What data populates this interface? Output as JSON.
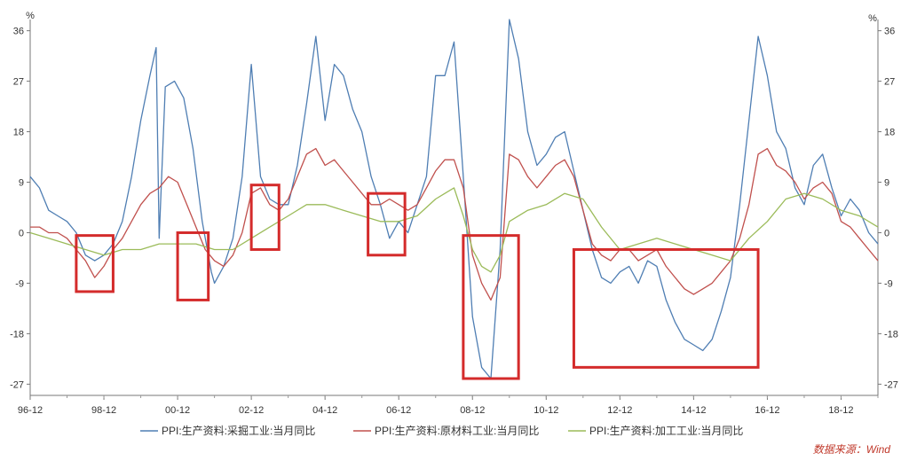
{
  "chart_data": {
    "type": "line",
    "title": "",
    "unit_left": "%",
    "unit_right": "%",
    "x_ticks": [
      "96-12",
      "98-12",
      "00-12",
      "02-12",
      "04-12",
      "06-12",
      "08-12",
      "10-12",
      "12-12",
      "14-12",
      "16-12",
      "18-12"
    ],
    "xlim": [
      "1996-12",
      "2019-12"
    ],
    "y_ticks": [
      36,
      27,
      18,
      9,
      0,
      -9,
      -18,
      -27
    ],
    "ylim": [
      -29,
      38
    ],
    "grid": false,
    "legend_position": "bottom",
    "source": "数据来源：Wind",
    "colors": {
      "mining": "#4f7eb3",
      "raw": "#c0504d",
      "processing": "#9bbb59",
      "highlight_box": "#d42b2b"
    },
    "series": [
      {
        "name": "PPI:生产资料:采掘工业:当月同比",
        "color": "#4f7eb3",
        "points": [
          [
            "1996-12",
            10
          ],
          [
            "1997-03",
            8
          ],
          [
            "1997-06",
            4
          ],
          [
            "1997-09",
            3
          ],
          [
            "1997-12",
            2
          ],
          [
            "1998-03",
            0
          ],
          [
            "1998-06",
            -4
          ],
          [
            "1998-09",
            -5
          ],
          [
            "1998-12",
            -4
          ],
          [
            "1999-03",
            -2
          ],
          [
            "1999-06",
            2
          ],
          [
            "1999-09",
            10
          ],
          [
            "1999-12",
            20
          ],
          [
            "2000-03",
            28
          ],
          [
            "2000-05",
            33
          ],
          [
            "2000-06",
            -1
          ],
          [
            "2000-08",
            26
          ],
          [
            "2000-11",
            27
          ],
          [
            "2001-02",
            24
          ],
          [
            "2001-05",
            15
          ],
          [
            "2001-08",
            2
          ],
          [
            "2001-11",
            -7
          ],
          [
            "2001-12",
            -9
          ],
          [
            "2002-03",
            -6
          ],
          [
            "2002-06",
            -1
          ],
          [
            "2002-09",
            10
          ],
          [
            "2002-12",
            30
          ],
          [
            "2003-03",
            10
          ],
          [
            "2003-06",
            6
          ],
          [
            "2003-09",
            5
          ],
          [
            "2003-12",
            5
          ],
          [
            "2004-03",
            12
          ],
          [
            "2004-06",
            23
          ],
          [
            "2004-09",
            35
          ],
          [
            "2004-12",
            20
          ],
          [
            "2005-03",
            30
          ],
          [
            "2005-06",
            28
          ],
          [
            "2005-09",
            22
          ],
          [
            "2005-12",
            18
          ],
          [
            "2006-03",
            10
          ],
          [
            "2006-06",
            5
          ],
          [
            "2006-09",
            -1
          ],
          [
            "2006-12",
            2
          ],
          [
            "2007-03",
            0
          ],
          [
            "2007-06",
            5
          ],
          [
            "2007-09",
            10
          ],
          [
            "2007-12",
            28
          ],
          [
            "2008-03",
            28
          ],
          [
            "2008-06",
            34
          ],
          [
            "2008-09",
            10
          ],
          [
            "2008-12",
            -15
          ],
          [
            "2009-03",
            -24
          ],
          [
            "2009-06",
            -26
          ],
          [
            "2009-09",
            -3
          ],
          [
            "2009-12",
            38
          ],
          [
            "2010-03",
            31
          ],
          [
            "2010-06",
            18
          ],
          [
            "2010-09",
            12
          ],
          [
            "2010-12",
            14
          ],
          [
            "2011-03",
            17
          ],
          [
            "2011-06",
            18
          ],
          [
            "2011-09",
            11
          ],
          [
            "2011-12",
            4
          ],
          [
            "2012-03",
            -3
          ],
          [
            "2012-06",
            -8
          ],
          [
            "2012-09",
            -9
          ],
          [
            "2012-12",
            -7
          ],
          [
            "2013-03",
            -6
          ],
          [
            "2013-06",
            -9
          ],
          [
            "2013-09",
            -5
          ],
          [
            "2013-12",
            -6
          ],
          [
            "2014-03",
            -12
          ],
          [
            "2014-06",
            -16
          ],
          [
            "2014-09",
            -19
          ],
          [
            "2014-12",
            -20
          ],
          [
            "2015-03",
            -21
          ],
          [
            "2015-06",
            -19
          ],
          [
            "2015-09",
            -14
          ],
          [
            "2015-12",
            -8
          ],
          [
            "2016-03",
            5
          ],
          [
            "2016-06",
            20
          ],
          [
            "2016-09",
            35
          ],
          [
            "2016-12",
            28
          ],
          [
            "2017-03",
            18
          ],
          [
            "2017-06",
            15
          ],
          [
            "2017-09",
            8
          ],
          [
            "2017-12",
            5
          ],
          [
            "2018-03",
            12
          ],
          [
            "2018-06",
            14
          ],
          [
            "2018-09",
            8
          ],
          [
            "2018-12",
            3
          ],
          [
            "2019-03",
            6
          ],
          [
            "2019-06",
            4
          ],
          [
            "2019-09",
            0
          ],
          [
            "2019-12",
            -2
          ]
        ]
      },
      {
        "name": "PPI:生产资料:原材料工业:当月同比",
        "color": "#c0504d",
        "points": [
          [
            "1996-12",
            1
          ],
          [
            "1997-03",
            1
          ],
          [
            "1997-06",
            0
          ],
          [
            "1997-09",
            0
          ],
          [
            "1997-12",
            -1
          ],
          [
            "1998-03",
            -3
          ],
          [
            "1998-06",
            -5
          ],
          [
            "1998-09",
            -8
          ],
          [
            "1998-12",
            -6
          ],
          [
            "1999-03",
            -3
          ],
          [
            "1999-06",
            -1
          ],
          [
            "1999-09",
            2
          ],
          [
            "1999-12",
            5
          ],
          [
            "2000-03",
            7
          ],
          [
            "2000-06",
            8
          ],
          [
            "2000-09",
            10
          ],
          [
            "2000-12",
            9
          ],
          [
            "2001-03",
            5
          ],
          [
            "2001-06",
            1
          ],
          [
            "2001-09",
            -3
          ],
          [
            "2001-12",
            -5
          ],
          [
            "2002-03",
            -6
          ],
          [
            "2002-06",
            -4
          ],
          [
            "2002-09",
            0
          ],
          [
            "2002-12",
            7
          ],
          [
            "2003-03",
            8
          ],
          [
            "2003-06",
            5
          ],
          [
            "2003-09",
            4
          ],
          [
            "2003-12",
            6
          ],
          [
            "2004-03",
            10
          ],
          [
            "2004-06",
            14
          ],
          [
            "2004-09",
            15
          ],
          [
            "2004-12",
            12
          ],
          [
            "2005-03",
            13
          ],
          [
            "2005-06",
            11
          ],
          [
            "2005-09",
            9
          ],
          [
            "2005-12",
            7
          ],
          [
            "2006-03",
            5
          ],
          [
            "2006-06",
            5
          ],
          [
            "2006-09",
            6
          ],
          [
            "2006-12",
            5
          ],
          [
            "2007-03",
            4
          ],
          [
            "2007-06",
            5
          ],
          [
            "2007-09",
            8
          ],
          [
            "2007-12",
            11
          ],
          [
            "2008-03",
            13
          ],
          [
            "2008-06",
            13
          ],
          [
            "2008-09",
            8
          ],
          [
            "2008-12",
            -4
          ],
          [
            "2009-03",
            -9
          ],
          [
            "2009-06",
            -12
          ],
          [
            "2009-09",
            -8
          ],
          [
            "2009-12",
            14
          ],
          [
            "2010-03",
            13
          ],
          [
            "2010-06",
            10
          ],
          [
            "2010-09",
            8
          ],
          [
            "2010-12",
            10
          ],
          [
            "2011-03",
            12
          ],
          [
            "2011-06",
            13
          ],
          [
            "2011-09",
            10
          ],
          [
            "2011-12",
            4
          ],
          [
            "2012-03",
            -2
          ],
          [
            "2012-06",
            -4
          ],
          [
            "2012-09",
            -5
          ],
          [
            "2012-12",
            -3
          ],
          [
            "2013-03",
            -3
          ],
          [
            "2013-06",
            -5
          ],
          [
            "2013-09",
            -4
          ],
          [
            "2013-12",
            -3
          ],
          [
            "2014-03",
            -6
          ],
          [
            "2014-06",
            -8
          ],
          [
            "2014-09",
            -10
          ],
          [
            "2014-12",
            -11
          ],
          [
            "2015-03",
            -10
          ],
          [
            "2015-06",
            -9
          ],
          [
            "2015-09",
            -7
          ],
          [
            "2015-12",
            -5
          ],
          [
            "2016-03",
            -1
          ],
          [
            "2016-06",
            5
          ],
          [
            "2016-09",
            14
          ],
          [
            "2016-12",
            15
          ],
          [
            "2017-03",
            12
          ],
          [
            "2017-06",
            11
          ],
          [
            "2017-09",
            9
          ],
          [
            "2017-12",
            6
          ],
          [
            "2018-03",
            8
          ],
          [
            "2018-06",
            9
          ],
          [
            "2018-09",
            7
          ],
          [
            "2018-12",
            2
          ],
          [
            "2019-03",
            1
          ],
          [
            "2019-06",
            -1
          ],
          [
            "2019-09",
            -3
          ],
          [
            "2019-12",
            -5
          ]
        ]
      },
      {
        "name": "PPI:生产资料:加工工业:当月同比",
        "color": "#9bbb59",
        "points": [
          [
            "1996-12",
            0
          ],
          [
            "1997-06",
            -1
          ],
          [
            "1997-12",
            -2
          ],
          [
            "1998-06",
            -3
          ],
          [
            "1998-12",
            -4
          ],
          [
            "1999-06",
            -3
          ],
          [
            "1999-12",
            -3
          ],
          [
            "2000-06",
            -2
          ],
          [
            "2000-12",
            -2
          ],
          [
            "2001-06",
            -2
          ],
          [
            "2001-12",
            -3
          ],
          [
            "2002-06",
            -3
          ],
          [
            "2002-12",
            -1
          ],
          [
            "2003-06",
            1
          ],
          [
            "2003-12",
            3
          ],
          [
            "2004-06",
            5
          ],
          [
            "2004-12",
            5
          ],
          [
            "2005-06",
            4
          ],
          [
            "2005-12",
            3
          ],
          [
            "2006-06",
            2
          ],
          [
            "2006-12",
            2
          ],
          [
            "2007-06",
            3
          ],
          [
            "2007-12",
            6
          ],
          [
            "2008-03",
            7
          ],
          [
            "2008-06",
            8
          ],
          [
            "2008-09",
            3
          ],
          [
            "2008-12",
            -3
          ],
          [
            "2009-03",
            -6
          ],
          [
            "2009-06",
            -7
          ],
          [
            "2009-09",
            -4
          ],
          [
            "2009-12",
            2
          ],
          [
            "2010-06",
            4
          ],
          [
            "2010-12",
            5
          ],
          [
            "2011-06",
            7
          ],
          [
            "2011-12",
            6
          ],
          [
            "2012-06",
            1
          ],
          [
            "2012-12",
            -3
          ],
          [
            "2013-06",
            -2
          ],
          [
            "2013-12",
            -1
          ],
          [
            "2014-06",
            -2
          ],
          [
            "2014-12",
            -3
          ],
          [
            "2015-06",
            -4
          ],
          [
            "2015-12",
            -5
          ],
          [
            "2016-06",
            -1
          ],
          [
            "2016-12",
            2
          ],
          [
            "2017-06",
            6
          ],
          [
            "2017-12",
            7
          ],
          [
            "2018-06",
            6
          ],
          [
            "2018-12",
            4
          ],
          [
            "2019-06",
            3
          ],
          [
            "2019-12",
            1
          ]
        ]
      }
    ],
    "highlights": [
      {
        "x": [
          "1998-03",
          "1999-03"
        ],
        "y": [
          -10.5,
          -0.5
        ]
      },
      {
        "x": [
          "2000-12",
          "2001-10"
        ],
        "y": [
          -12,
          0
        ]
      },
      {
        "x": [
          "2002-12",
          "2003-09"
        ],
        "y": [
          -3,
          8.5
        ]
      },
      {
        "x": [
          "2006-02",
          "2007-02"
        ],
        "y": [
          -4,
          7
        ]
      },
      {
        "x": [
          "2008-09",
          "2010-03"
        ],
        "y": [
          -26,
          -0.5
        ]
      },
      {
        "x": [
          "2011-09",
          "2016-09"
        ],
        "y": [
          -24,
          -3
        ]
      }
    ]
  }
}
